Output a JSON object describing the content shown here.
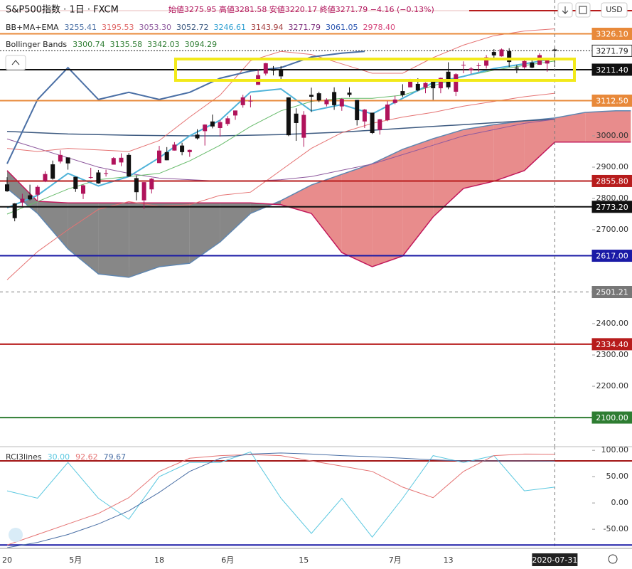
{
  "chart_data": {
    "type": "candlestick",
    "title": "S&P500指数 · 1日 · FXCM",
    "ohlc_label": "始値3275.95 高値3281.58 安値3220.17 終値3271.79 −4.16 (−0.13%)",
    "currency": "USD",
    "indicator_legend": [
      {
        "name": "BB+MA+EMA",
        "items": [
          {
            "text": "3255.41",
            "color": "#4a6fa5"
          },
          {
            "text": "3195.53",
            "color": "#e06666"
          },
          {
            "text": "3053.30",
            "color": "#8e5a9e"
          },
          {
            "text": "3052.72",
            "color": "#3d5a80"
          },
          {
            "text": "3246.61",
            "color": "#2e9fd1"
          },
          {
            "text": "3143.94",
            "color": "#a33a3a"
          },
          {
            "text": "3271.79",
            "color": "#7b2c7b"
          },
          {
            "text": "3061.05",
            "color": "#2a55b0"
          },
          {
            "text": "2978.40",
            "color": "#d6457a"
          }
        ]
      },
      {
        "name": "Bollinger Bands",
        "items": [
          {
            "text": "3300.74",
            "color": "#2e7d32"
          },
          {
            "text": "3135.58",
            "color": "#2e7d32"
          },
          {
            "text": "3342.03",
            "color": "#2e7d32"
          },
          {
            "text": "3094.29",
            "color": "#2e7d32"
          }
        ]
      }
    ],
    "categories": [
      "20",
      null,
      null,
      null,
      null,
      null,
      null,
      null,
      null,
      "5月",
      null,
      null,
      null,
      null,
      null,
      null,
      null,
      null,
      null,
      null,
      "18",
      null,
      null,
      null,
      null,
      null,
      null,
      null,
      null,
      "6月",
      null,
      null,
      null,
      null,
      null,
      null,
      null,
      null,
      null,
      "15",
      null,
      null,
      null,
      null,
      null,
      null,
      null,
      null,
      null,
      null,
      null,
      "7月",
      null,
      null,
      null,
      null,
      null,
      null,
      "13",
      null,
      null,
      null,
      null,
      null,
      null,
      null,
      null,
      null,
      null,
      null,
      null,
      null,
      "2020-07-31"
    ],
    "candles": {
      "up_color": "#b0135b",
      "down_color": "#111111",
      "open": [
        2845,
        2784,
        2787,
        2810,
        2812,
        2855,
        2909,
        2918,
        2931,
        2869,
        2815,
        2868,
        2883,
        2879,
        2908,
        2915,
        2939,
        2865,
        2794,
        2829,
        2913,
        2948,
        2953,
        2969,
        2948,
        3004,
        3015,
        3046,
        3025,
        3038,
        3065,
        3098,
        3112,
        3163,
        3199,
        3213,
        3213,
        3123,
        3071,
        2994,
        3131,
        3136,
        3101,
        3140,
        3094,
        3138,
        3115,
        3046,
        3074,
        3019,
        3050,
        3105,
        3143,
        3155,
        3166,
        3154,
        3176,
        3152,
        3205,
        3141,
        3225,
        3209,
        3224,
        3224,
        3268,
        3254,
        3271,
        3218,
        3219,
        3234,
        3227,
        3231,
        3275.95
      ],
      "high": [
        2868,
        2785,
        2815,
        2844,
        2842,
        2887,
        2921,
        2954,
        2931,
        2869,
        2844,
        2898,
        2891,
        2892,
        2932,
        2944,
        2945,
        2874,
        2852,
        2865,
        2968,
        2964,
        2980,
        2978,
        2956,
        3021,
        3037,
        3068,
        3050,
        3063,
        3081,
        3131,
        3129,
        3212,
        3233,
        3223,
        3223,
        3123,
        3088,
        3079,
        3154,
        3141,
        3120,
        3155,
        3120,
        3155,
        3115,
        3086,
        3074,
        3054,
        3111,
        3128,
        3165,
        3182,
        3184,
        3171,
        3179,
        3186,
        3235,
        3200,
        3238,
        3220,
        3233,
        3258,
        3277,
        3279,
        3280,
        3227,
        3241,
        3243,
        3264,
        3250,
        3281.58
      ],
      "low": [
        2821,
        2727,
        2775,
        2794,
        2791,
        2852,
        2860,
        2912,
        2892,
        2821,
        2798,
        2863,
        2847,
        2870,
        2908,
        2903,
        2869,
        2794,
        2766,
        2816,
        2913,
        2922,
        2953,
        2938,
        2933,
        2988,
        2969,
        3024,
        2998,
        3032,
        3051,
        3090,
        3091,
        3163,
        3193,
        3193,
        3181,
        2999,
        2984,
        2965,
        3076,
        3108,
        3094,
        3083,
        3080,
        3124,
        3033,
        3025,
        3006,
        3004,
        3047,
        3101,
        3124,
        3155,
        3142,
        3136,
        3115,
        3136,
        3149,
        3127,
        3200,
        3198,
        3205,
        3215,
        3247,
        3253,
        3220,
        3200,
        3214,
        3216,
        3227,
        3205,
        3220.17
      ],
      "close": [
        2823,
        2737,
        2799,
        2797,
        2837,
        2878,
        2863,
        2939,
        2912,
        2830,
        2842,
        2868,
        2848,
        2881,
        2929,
        2930,
        2870,
        2820,
        2852,
        2863,
        2953,
        2922,
        2972,
        2948,
        2955,
        2992,
        3036,
        3030,
        3044,
        3056,
        3081,
        3123,
        3112,
        3194,
        3232,
        3208,
        3190,
        3002,
        3041,
        3067,
        3125,
        3113,
        3115,
        3098,
        3118,
        3131,
        3050,
        3084,
        3009,
        3053,
        3100,
        3116,
        3130,
        3179,
        3145,
        3169,
        3152,
        3185,
        3155,
        3197,
        3227,
        3215,
        3225,
        3251,
        3257,
        3276,
        3236,
        3215,
        3239,
        3218,
        3258,
        3246,
        3271.79
      ]
    },
    "cloud": {
      "bull_color": "#e06666",
      "bear_color": "#5f5f5f",
      "a_color": "#5f86b0",
      "b_color": "#c2185b",
      "x": [
        0,
        4,
        8,
        12,
        16,
        20,
        24,
        28,
        32,
        36,
        40,
        44,
        48,
        52,
        56,
        60,
        64,
        68,
        72,
        76,
        80,
        82
      ],
      "span_a": [
        2832,
        2752,
        2639,
        2559,
        2548,
        2582,
        2593,
        2661,
        2752,
        2793,
        2843,
        2877,
        2911,
        2957,
        2991,
        3020,
        3036,
        3048,
        3057,
        3075,
        3080,
        3080
      ],
      "span_b": [
        2889,
        2791,
        2786,
        2786,
        2786,
        2786,
        2786,
        2786,
        2786,
        2780,
        2752,
        2627,
        2582,
        2616,
        2741,
        2832,
        2855,
        2889,
        2980,
        2980,
        2980,
        2980
      ]
    },
    "lines": [
      {
        "color": "#3d5a80",
        "width": 1.5,
        "x": [
          0,
          4,
          8,
          12,
          16,
          20,
          24,
          28,
          32,
          36,
          40,
          44,
          48,
          52,
          56,
          60,
          64,
          68,
          72
        ],
        "values": [
          3014,
          3010,
          3006,
          3004,
          3002,
          3001,
          3000,
          3000,
          3002,
          3004,
          3008,
          3012,
          3018,
          3024,
          3030,
          3036,
          3042,
          3048,
          3053
        ]
      },
      {
        "color": "#8e5a9e",
        "width": 1,
        "x": [
          0,
          4,
          8,
          12,
          16,
          20,
          24,
          28,
          32,
          36,
          40,
          44,
          48,
          52,
          56,
          60,
          64,
          68,
          72
        ],
        "values": [
          2990,
          2960,
          2930,
          2900,
          2880,
          2865,
          2860,
          2855,
          2855,
          2860,
          2870,
          2890,
          2910,
          2940,
          2970,
          3000,
          3020,
          3040,
          3053
        ]
      },
      {
        "color": "#e57373",
        "width": 1,
        "x": [
          0,
          4,
          8,
          12,
          16,
          20,
          24,
          28,
          32,
          36,
          40,
          44,
          48,
          52,
          56,
          60,
          64,
          68,
          72
        ],
        "values": [
          2960,
          2950,
          2960,
          2955,
          2950,
          2985,
          3060,
          3130,
          3240,
          3270,
          3260,
          3230,
          3200,
          3200,
          3250,
          3290,
          3320,
          3335,
          3342
        ]
      },
      {
        "color": "#66bb6a",
        "width": 1,
        "x": [
          0,
          4,
          8,
          12,
          16,
          20,
          24,
          28,
          32,
          36,
          40,
          44,
          48,
          52,
          56,
          60,
          64,
          68,
          72
        ],
        "values": [
          2750,
          2790,
          2830,
          2860,
          2870,
          2880,
          2920,
          2970,
          3030,
          3080,
          3110,
          3120,
          3120,
          3130,
          3160,
          3190,
          3210,
          3225,
          3239
        ]
      },
      {
        "color": "#e57373",
        "width": 1,
        "x": [
          0,
          4,
          8,
          12,
          16,
          20,
          24,
          28,
          32,
          36,
          40,
          44,
          48,
          52,
          56,
          60,
          64,
          68,
          72
        ],
        "values": [
          2540,
          2630,
          2700,
          2765,
          2790,
          2775,
          2780,
          2810,
          2820,
          2890,
          2960,
          3010,
          3040,
          3060,
          3075,
          3095,
          3110,
          3125,
          3136
        ]
      },
      {
        "color": "#4fb3d9",
        "width": 2,
        "x": [
          0,
          4,
          8,
          12,
          16,
          20,
          24,
          28,
          32,
          36,
          40,
          44,
          48,
          52,
          56,
          60,
          64,
          68,
          72
        ],
        "values": [
          2770,
          2810,
          2880,
          2840,
          2870,
          2930,
          3000,
          3050,
          3140,
          3150,
          3080,
          3100,
          3070,
          3120,
          3170,
          3190,
          3215,
          3230,
          3247
        ]
      },
      {
        "color": "#4a6fa5",
        "width": 2,
        "x": [
          0,
          4,
          8,
          12,
          16,
          20,
          24,
          28,
          32,
          36,
          40,
          44,
          47
        ],
        "values": [
          2911,
          3116,
          3218,
          3116,
          3139,
          3116,
          3139,
          3184,
          3207,
          3218,
          3252,
          3264,
          3270
        ]
      }
    ],
    "price_lines": [
      {
        "value": 3400,
        "color": "#b71c1c"
      },
      {
        "value": 3326.1,
        "label": "3326.10",
        "color": "#e8893a"
      },
      {
        "value": 3271.79,
        "label": "3271.79",
        "color": "#222222",
        "label_fill": "#ffffff",
        "dash": "2,2"
      },
      {
        "value": 3211.4,
        "label": "3211.40",
        "color": "#111111"
      },
      {
        "value": 3112.5,
        "label": "3112.50",
        "color": "#e8893a"
      },
      {
        "value": 2855.8,
        "label": "2855.80",
        "color": "#b71c1c"
      },
      {
        "value": 2773.2,
        "label": "2773.20",
        "color": "#111111"
      },
      {
        "value": 2617.0,
        "label": "2617.00",
        "color": "#1a1aa6"
      },
      {
        "value": 2501.21,
        "label": "2501.21",
        "color": "#777777",
        "dash": "4,4"
      },
      {
        "value": 2334.4,
        "label": "2334.40",
        "color": "#b71c1c"
      },
      {
        "value": 2100.0,
        "label": "2100.00",
        "color": "#2e7d32"
      }
    ],
    "ylim": [
      2007,
      3434
    ],
    "yticks": [
      {
        "value": 2200,
        "label": "2200.00"
      },
      {
        "value": 2300,
        "label": "2300.00"
      },
      {
        "value": 2400,
        "label": "2400.00"
      },
      {
        "value": 2700,
        "label": "2700.00"
      },
      {
        "value": 2800,
        "label": "2800.00"
      },
      {
        "value": 2900,
        "label": "2900.00"
      },
      {
        "value": 3000,
        "label": "3000.00"
      }
    ],
    "rci": {
      "title": "RCI3lines",
      "ylim": [
        -85,
        107
      ],
      "yticks": [
        {
          "value": 100,
          "label": "100.00"
        },
        {
          "value": 50,
          "label": "50.00"
        },
        {
          "value": 0,
          "label": "0.00"
        },
        {
          "value": -50,
          "label": "-50.00"
        }
      ],
      "levels": [
        {
          "value": 80,
          "color": "#a31515"
        },
        {
          "value": -80,
          "color": "#1a1aa6"
        }
      ],
      "series": [
        {
          "color": "#5bc8e0",
          "legend": "30.00",
          "x": [
            0,
            4,
            8,
            12,
            16,
            20,
            24,
            28,
            32,
            36,
            40,
            44,
            48,
            52,
            56,
            60,
            64,
            68,
            72
          ],
          "values": [
            23,
            9,
            77,
            9,
            -31,
            50,
            77,
            77,
            97,
            9,
            -58,
            9,
            -65,
            9,
            90,
            77,
            90,
            23,
            30
          ]
        },
        {
          "color": "#e57373",
          "legend": "92.62",
          "x": [
            0,
            4,
            8,
            12,
            16,
            20,
            24,
            28,
            32,
            36,
            40,
            44,
            48,
            52,
            56,
            60,
            64,
            68,
            72
          ],
          "values": [
            -80,
            -60,
            -40,
            -20,
            10,
            60,
            85,
            90,
            92,
            90,
            80,
            70,
            60,
            30,
            10,
            60,
            90,
            93,
            92.62
          ]
        },
        {
          "color": "#4a6fa5",
          "legend": "79.67",
          "x": [
            0,
            4,
            8,
            12,
            16,
            20,
            24,
            28,
            32,
            36,
            40,
            44,
            48,
            52,
            56,
            60,
            64,
            68,
            72
          ],
          "values": [
            -85,
            -75,
            -60,
            -40,
            -15,
            20,
            60,
            85,
            93,
            95,
            93,
            90,
            88,
            85,
            82,
            80,
            80,
            80,
            79.67
          ]
        }
      ]
    }
  }
}
